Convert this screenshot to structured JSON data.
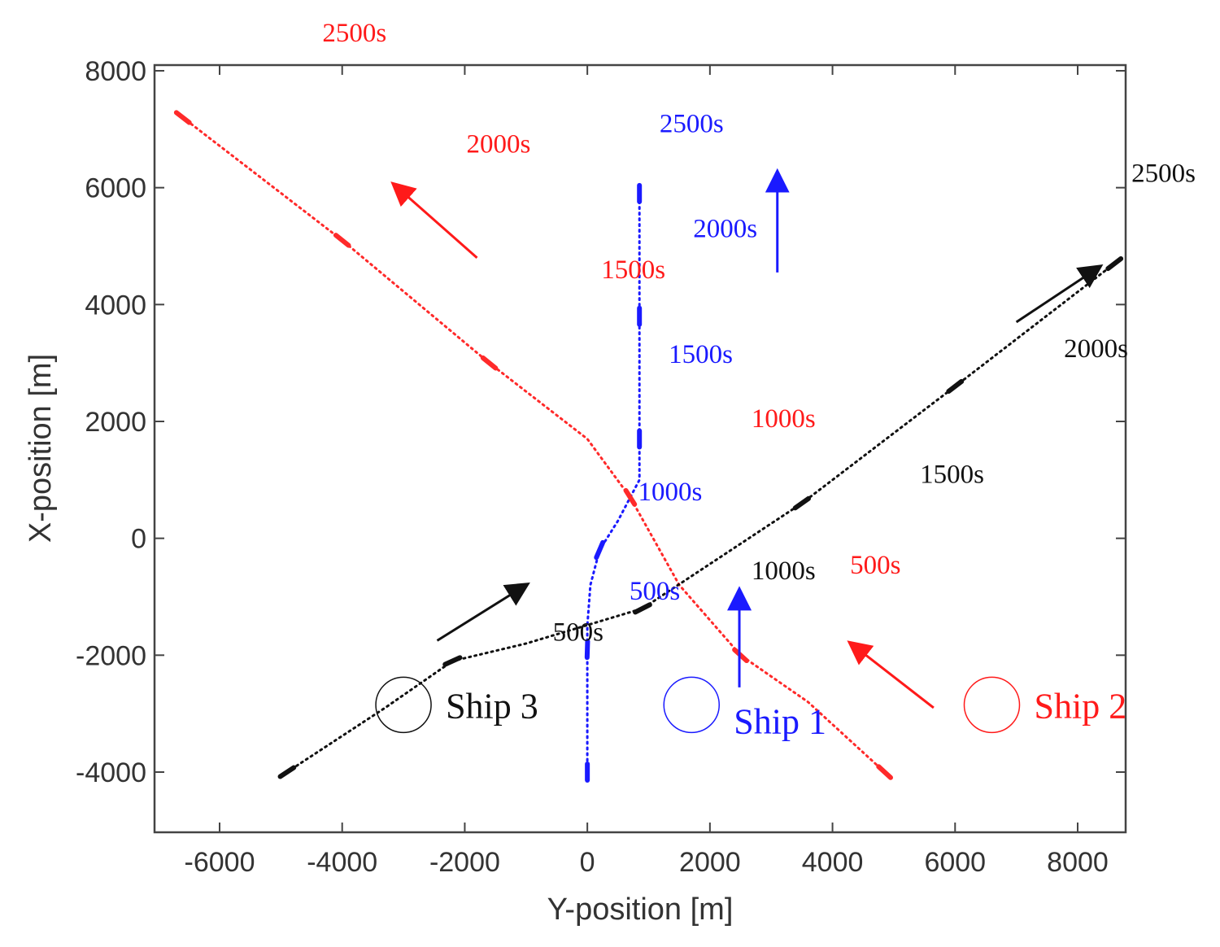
{
  "chart_data": {
    "type": "line",
    "title": "",
    "xlabel": "Y-position [m]",
    "ylabel": "X-position [m]",
    "xlim": [
      -7000,
      8800
    ],
    "ylim": [
      -4800,
      8000
    ],
    "xticks": [
      -6000,
      -4000,
      -2000,
      0,
      2000,
      4000,
      6000,
      8000
    ],
    "yticks": [
      -4000,
      -2000,
      0,
      2000,
      4000,
      6000,
      8000
    ],
    "xtick_labels": [
      "-6000",
      "-4000",
      "-2000",
      "0",
      "2000",
      "4000",
      "6000",
      "8000"
    ],
    "ytick_labels": [
      "-4000",
      "-2000",
      "0",
      "2000",
      "4000",
      "6000",
      "8000"
    ],
    "grid": false,
    "series": [
      {
        "name": "Ship 1",
        "color": "#1a1aff",
        "points": [
          [
            0,
            -4000
          ],
          [
            0,
            -2500
          ],
          [
            0,
            -1500
          ],
          [
            50,
            -800
          ],
          [
            200,
            -200
          ],
          [
            500,
            300
          ],
          [
            850,
            1000
          ],
          [
            850,
            2000
          ],
          [
            850,
            4000
          ],
          [
            850,
            6000
          ]
        ],
        "time_marks": [
          [
            0,
            -4000
          ],
          [
            0,
            -1900
          ],
          [
            200,
            -200
          ],
          [
            850,
            1700
          ],
          [
            850,
            3800
          ],
          [
            850,
            5900
          ]
        ]
      },
      {
        "name": "Ship 2",
        "color": "#ff2a2a",
        "points": [
          [
            4850,
            -4000
          ],
          [
            3600,
            -2800
          ],
          [
            2500,
            -2000
          ],
          [
            1500,
            -800
          ],
          [
            700,
            700
          ],
          [
            0,
            1700
          ],
          [
            -1600,
            3000
          ],
          [
            -4000,
            5100
          ],
          [
            -6600,
            7200
          ]
        ],
        "time_marks": [
          [
            4850,
            -4000
          ],
          [
            2500,
            -2000
          ],
          [
            700,
            700
          ],
          [
            -1600,
            3000
          ],
          [
            -4000,
            5100
          ],
          [
            -6600,
            7200
          ]
        ]
      },
      {
        "name": "Ship 3",
        "color": "#111111",
        "points": [
          [
            -4900,
            -4000
          ],
          [
            -3300,
            -2900
          ],
          [
            -2200,
            -2100
          ],
          [
            -1000,
            -1800
          ],
          [
            900,
            -1200
          ],
          [
            3500,
            600
          ],
          [
            6000,
            2600
          ],
          [
            8600,
            4700
          ]
        ],
        "time_marks": [
          [
            -4900,
            -4000
          ],
          [
            -2200,
            -2100
          ],
          [
            900,
            -1200
          ],
          [
            3500,
            600
          ],
          [
            6000,
            2600
          ],
          [
            8600,
            4700
          ]
        ]
      }
    ],
    "time_labels": [
      {
        "text": "2500s",
        "color": "#ff1a1a",
        "x": -3800,
        "y": 8500
      },
      {
        "text": "2000s",
        "color": "#ff1a1a",
        "x": -1450,
        "y": 6600
      },
      {
        "text": "1500s",
        "color": "#ff1a1a",
        "x": 750,
        "y": 4450
      },
      {
        "text": "1000s",
        "color": "#ff1a1a",
        "x": 3200,
        "y": 1900
      },
      {
        "text": "500s",
        "color": "#ff1a1a",
        "x": 4700,
        "y": -600
      },
      {
        "text": "2500s",
        "color": "#1a1aff",
        "x": 1700,
        "y": 6950
      },
      {
        "text": "2000s",
        "color": "#1a1aff",
        "x": 2250,
        "y": 5150
      },
      {
        "text": "1500s",
        "color": "#1a1aff",
        "x": 1850,
        "y": 3000
      },
      {
        "text": "1000s",
        "color": "#1a1aff",
        "x": 1350,
        "y": 650
      },
      {
        "text": "500s",
        "color": "#1a1aff",
        "x": 1100,
        "y": -1050
      },
      {
        "text": "2500s",
        "color": "#111111",
        "x": 9400,
        "y": 6100
      },
      {
        "text": "2000s",
        "color": "#111111",
        "x": 8300,
        "y": 3100
      },
      {
        "text": "1500s",
        "color": "#111111",
        "x": 5950,
        "y": 950
      },
      {
        "text": "1000s",
        "color": "#111111",
        "x": 3200,
        "y": -700
      },
      {
        "text": "500s",
        "color": "#111111",
        "x": -150,
        "y": -1750
      }
    ],
    "direction_arrows": [
      {
        "color": "#1a1aff",
        "from": [
          3100,
          4550
        ],
        "to": [
          3100,
          6250
        ]
      },
      {
        "color": "#1a1aff",
        "from": [
          2480,
          -2550
        ],
        "to": [
          2480,
          -900
        ]
      },
      {
        "color": "#ff1a1a",
        "from": [
          -1800,
          4800
        ],
        "to": [
          -3150,
          6050
        ]
      },
      {
        "color": "#ff1a1a",
        "from": [
          5650,
          -2900
        ],
        "to": [
          4300,
          -1800
        ]
      },
      {
        "color": "#111111",
        "from": [
          -2450,
          -1750
        ],
        "to": [
          -1000,
          -800
        ]
      },
      {
        "color": "#111111",
        "from": [
          7000,
          3700
        ],
        "to": [
          8350,
          4640
        ]
      }
    ],
    "ship_markers": [
      {
        "name": "Ship 3",
        "color": "#111111",
        "x": -3000,
        "y": -2850
      },
      {
        "name": "Ship 1",
        "color": "#1a1aff",
        "x": 1700,
        "y": -2850
      },
      {
        "name": "Ship 2",
        "color": "#ff1a1a",
        "x": 6600,
        "y": -2850
      }
    ]
  }
}
